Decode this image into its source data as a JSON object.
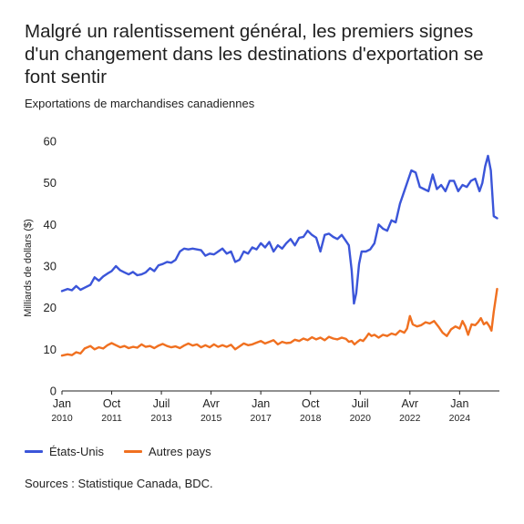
{
  "colors": {
    "us": "#3b55d9",
    "other": "#f07020"
  },
  "chart_data": {
    "type": "line",
    "title": "Malgré un ralentissement général, les premiers signes d'un changement dans les destinations d'exportation se font sentir",
    "subtitle": "Exportations de marchandises canadiennes",
    "ylabel": "Milliards de dollars ($)",
    "xlabel": "",
    "ylim": [
      0,
      60
    ],
    "yticks": [
      0,
      10,
      20,
      30,
      40,
      50,
      60
    ],
    "xlim": [
      2010.0,
      2025.4
    ],
    "xticks": [
      {
        "x": 2010.0,
        "label": "Jan",
        "year": "2010"
      },
      {
        "x": 2011.75,
        "label": "Oct",
        "year": "2011"
      },
      {
        "x": 2013.5,
        "label": "Juil",
        "year": "2013"
      },
      {
        "x": 2015.25,
        "label": "Avr",
        "year": "2015"
      },
      {
        "x": 2017.0,
        "label": "Jan",
        "year": "2017"
      },
      {
        "x": 2018.75,
        "label": "Oct",
        "year": "2018"
      },
      {
        "x": 2020.5,
        "label": "Juil",
        "year": "2020"
      },
      {
        "x": 2022.25,
        "label": "Avr",
        "year": "2022"
      },
      {
        "x": 2024.0,
        "label": "Jan",
        "year": "2024"
      }
    ],
    "grid": false,
    "legend": "bottom-left",
    "series": [
      {
        "name": "États-Unis",
        "color": "#3b55d9",
        "points": [
          [
            2010.0,
            24.0
          ],
          [
            2010.2,
            24.5
          ],
          [
            2010.35,
            24.2
          ],
          [
            2010.5,
            25.2
          ],
          [
            2010.65,
            24.3
          ],
          [
            2010.8,
            24.8
          ],
          [
            2011.0,
            25.5
          ],
          [
            2011.15,
            27.3
          ],
          [
            2011.3,
            26.5
          ],
          [
            2011.45,
            27.5
          ],
          [
            2011.6,
            28.2
          ],
          [
            2011.75,
            28.8
          ],
          [
            2011.9,
            30.0
          ],
          [
            2012.05,
            29.0
          ],
          [
            2012.2,
            28.5
          ],
          [
            2012.35,
            28.0
          ],
          [
            2012.5,
            28.6
          ],
          [
            2012.65,
            27.8
          ],
          [
            2012.8,
            28.0
          ],
          [
            2012.95,
            28.5
          ],
          [
            2013.1,
            29.5
          ],
          [
            2013.25,
            28.8
          ],
          [
            2013.4,
            30.2
          ],
          [
            2013.55,
            30.5
          ],
          [
            2013.7,
            31.0
          ],
          [
            2013.85,
            30.8
          ],
          [
            2014.0,
            31.5
          ],
          [
            2014.15,
            33.5
          ],
          [
            2014.3,
            34.2
          ],
          [
            2014.45,
            34.0
          ],
          [
            2014.6,
            34.2
          ],
          [
            2014.75,
            34.0
          ],
          [
            2014.9,
            33.8
          ],
          [
            2015.05,
            32.5
          ],
          [
            2015.2,
            33.0
          ],
          [
            2015.35,
            32.8
          ],
          [
            2015.5,
            33.5
          ],
          [
            2015.65,
            34.2
          ],
          [
            2015.8,
            33.0
          ],
          [
            2015.95,
            33.5
          ],
          [
            2016.1,
            31.0
          ],
          [
            2016.25,
            31.5
          ],
          [
            2016.4,
            33.5
          ],
          [
            2016.55,
            33.0
          ],
          [
            2016.7,
            34.5
          ],
          [
            2016.85,
            34.0
          ],
          [
            2017.0,
            35.5
          ],
          [
            2017.15,
            34.5
          ],
          [
            2017.3,
            35.8
          ],
          [
            2017.45,
            33.5
          ],
          [
            2017.6,
            35.0
          ],
          [
            2017.75,
            34.2
          ],
          [
            2017.9,
            35.5
          ],
          [
            2018.05,
            36.5
          ],
          [
            2018.2,
            35.0
          ],
          [
            2018.35,
            36.8
          ],
          [
            2018.5,
            37.0
          ],
          [
            2018.65,
            38.5
          ],
          [
            2018.8,
            37.5
          ],
          [
            2018.95,
            36.8
          ],
          [
            2019.1,
            33.5
          ],
          [
            2019.25,
            37.5
          ],
          [
            2019.4,
            37.8
          ],
          [
            2019.55,
            37.0
          ],
          [
            2019.7,
            36.5
          ],
          [
            2019.85,
            37.5
          ],
          [
            2020.0,
            36.0
          ],
          [
            2020.1,
            35.0
          ],
          [
            2020.2,
            29.0
          ],
          [
            2020.28,
            21.0
          ],
          [
            2020.36,
            23.5
          ],
          [
            2020.46,
            30.5
          ],
          [
            2020.55,
            33.5
          ],
          [
            2020.7,
            33.5
          ],
          [
            2020.85,
            34.0
          ],
          [
            2021.0,
            35.5
          ],
          [
            2021.15,
            40.0
          ],
          [
            2021.3,
            39.0
          ],
          [
            2021.45,
            38.5
          ],
          [
            2021.6,
            41.0
          ],
          [
            2021.75,
            40.5
          ],
          [
            2021.9,
            45.0
          ],
          [
            2022.05,
            48.0
          ],
          [
            2022.15,
            50.0
          ],
          [
            2022.3,
            53.0
          ],
          [
            2022.45,
            52.5
          ],
          [
            2022.6,
            49.0
          ],
          [
            2022.75,
            48.5
          ],
          [
            2022.9,
            48.0
          ],
          [
            2023.05,
            52.0
          ],
          [
            2023.2,
            48.5
          ],
          [
            2023.35,
            49.5
          ],
          [
            2023.5,
            48.0
          ],
          [
            2023.65,
            50.5
          ],
          [
            2023.8,
            50.5
          ],
          [
            2023.95,
            48.0
          ],
          [
            2024.1,
            49.5
          ],
          [
            2024.25,
            49.0
          ],
          [
            2024.4,
            50.5
          ],
          [
            2024.55,
            51.0
          ],
          [
            2024.7,
            48.0
          ],
          [
            2024.8,
            50.0
          ],
          [
            2024.9,
            54.0
          ],
          [
            2025.0,
            56.5
          ],
          [
            2025.1,
            53.0
          ],
          [
            2025.2,
            42.0
          ],
          [
            2025.32,
            41.5
          ]
        ]
      },
      {
        "name": "Autres pays",
        "color": "#f07020",
        "points": [
          [
            2010.0,
            8.5
          ],
          [
            2010.2,
            8.8
          ],
          [
            2010.35,
            8.6
          ],
          [
            2010.5,
            9.3
          ],
          [
            2010.65,
            9.0
          ],
          [
            2010.8,
            10.2
          ],
          [
            2011.0,
            10.8
          ],
          [
            2011.15,
            10.0
          ],
          [
            2011.3,
            10.5
          ],
          [
            2011.45,
            10.2
          ],
          [
            2011.6,
            11.0
          ],
          [
            2011.75,
            11.5
          ],
          [
            2011.9,
            11.0
          ],
          [
            2012.05,
            10.5
          ],
          [
            2012.2,
            10.8
          ],
          [
            2012.35,
            10.3
          ],
          [
            2012.5,
            10.6
          ],
          [
            2012.65,
            10.4
          ],
          [
            2012.8,
            11.2
          ],
          [
            2012.95,
            10.6
          ],
          [
            2013.1,
            10.8
          ],
          [
            2013.25,
            10.3
          ],
          [
            2013.4,
            10.9
          ],
          [
            2013.55,
            11.3
          ],
          [
            2013.7,
            10.8
          ],
          [
            2013.85,
            10.5
          ],
          [
            2014.0,
            10.7
          ],
          [
            2014.15,
            10.3
          ],
          [
            2014.3,
            10.9
          ],
          [
            2014.45,
            11.4
          ],
          [
            2014.6,
            10.9
          ],
          [
            2014.75,
            11.2
          ],
          [
            2014.9,
            10.5
          ],
          [
            2015.05,
            11.0
          ],
          [
            2015.2,
            10.5
          ],
          [
            2015.35,
            11.2
          ],
          [
            2015.5,
            10.6
          ],
          [
            2015.65,
            11.0
          ],
          [
            2015.8,
            10.6
          ],
          [
            2015.95,
            11.1
          ],
          [
            2016.1,
            10.0
          ],
          [
            2016.25,
            10.7
          ],
          [
            2016.4,
            11.4
          ],
          [
            2016.55,
            11.0
          ],
          [
            2016.7,
            11.2
          ],
          [
            2016.85,
            11.6
          ],
          [
            2017.0,
            12.0
          ],
          [
            2017.15,
            11.4
          ],
          [
            2017.3,
            11.8
          ],
          [
            2017.45,
            12.2
          ],
          [
            2017.6,
            11.2
          ],
          [
            2017.75,
            11.8
          ],
          [
            2017.9,
            11.5
          ],
          [
            2018.05,
            11.6
          ],
          [
            2018.2,
            12.3
          ],
          [
            2018.35,
            12.0
          ],
          [
            2018.5,
            12.6
          ],
          [
            2018.65,
            12.2
          ],
          [
            2018.8,
            12.9
          ],
          [
            2018.95,
            12.4
          ],
          [
            2019.1,
            12.8
          ],
          [
            2019.25,
            12.2
          ],
          [
            2019.4,
            13.0
          ],
          [
            2019.55,
            12.6
          ],
          [
            2019.7,
            12.4
          ],
          [
            2019.85,
            12.8
          ],
          [
            2020.0,
            12.5
          ],
          [
            2020.1,
            11.8
          ],
          [
            2020.2,
            12.0
          ],
          [
            2020.3,
            11.2
          ],
          [
            2020.4,
            11.8
          ],
          [
            2020.5,
            12.3
          ],
          [
            2020.6,
            12.0
          ],
          [
            2020.7,
            12.8
          ],
          [
            2020.8,
            13.8
          ],
          [
            2020.9,
            13.2
          ],
          [
            2021.0,
            13.5
          ],
          [
            2021.15,
            12.8
          ],
          [
            2021.3,
            13.5
          ],
          [
            2021.45,
            13.2
          ],
          [
            2021.6,
            13.8
          ],
          [
            2021.75,
            13.5
          ],
          [
            2021.9,
            14.5
          ],
          [
            2022.05,
            14.0
          ],
          [
            2022.15,
            15.0
          ],
          [
            2022.25,
            18.0
          ],
          [
            2022.35,
            16.0
          ],
          [
            2022.5,
            15.5
          ],
          [
            2022.65,
            15.8
          ],
          [
            2022.8,
            16.5
          ],
          [
            2022.95,
            16.2
          ],
          [
            2023.1,
            16.8
          ],
          [
            2023.25,
            15.5
          ],
          [
            2023.4,
            14.0
          ],
          [
            2023.55,
            13.2
          ],
          [
            2023.7,
            14.8
          ],
          [
            2023.85,
            15.5
          ],
          [
            2024.0,
            15.0
          ],
          [
            2024.1,
            16.8
          ],
          [
            2024.2,
            15.5
          ],
          [
            2024.3,
            13.5
          ],
          [
            2024.42,
            16.0
          ],
          [
            2024.55,
            15.8
          ],
          [
            2024.65,
            16.5
          ],
          [
            2024.75,
            17.5
          ],
          [
            2024.85,
            16.0
          ],
          [
            2024.95,
            16.5
          ],
          [
            2025.05,
            15.5
          ],
          [
            2025.12,
            14.5
          ],
          [
            2025.2,
            19.0
          ],
          [
            2025.32,
            24.5
          ]
        ]
      }
    ]
  },
  "source": "Sources : Statistique Canada, BDC."
}
